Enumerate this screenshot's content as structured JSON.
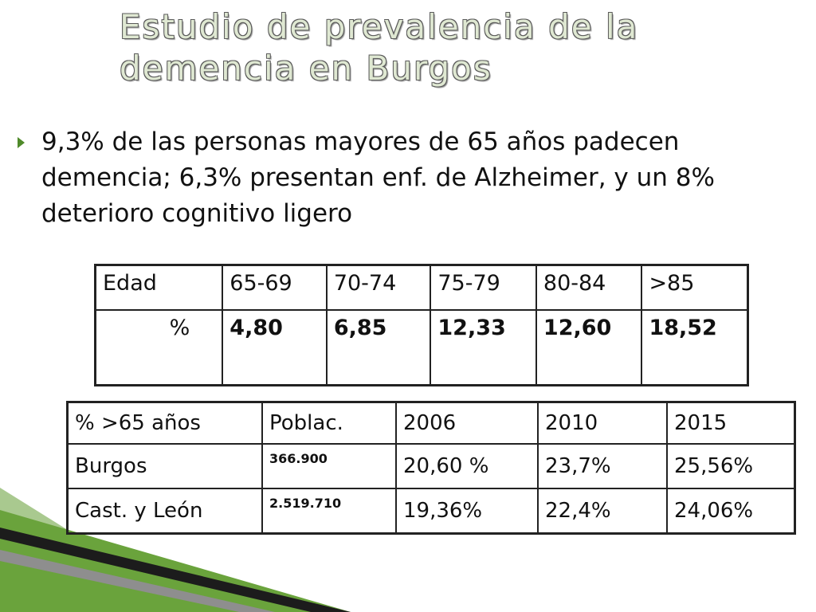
{
  "title": "Estudio de prevalencia de la demencia en Burgos",
  "bullet": "9,3% de las personas mayores de 65 años padecen demencia; 6,3% presentan enf. de Alzheimer, y un 8% deterioro cognitivo ligero",
  "age_table": {
    "header": [
      "Edad",
      "65-69",
      "70-74",
      "75-79",
      "80-84",
      ">85"
    ],
    "row": [
      "%",
      "4,80",
      "6,85",
      "12,33",
      "12,60",
      "18,52"
    ]
  },
  "pop_table": {
    "header": [
      "% >65 años",
      "Poblac.",
      "2006",
      "2010",
      "2015"
    ],
    "rows": [
      [
        "Burgos",
        "366.900",
        "20,60 %",
        "23,7%",
        "25,56%"
      ],
      [
        "Cast. y León",
        "2.519.710",
        "19,36%",
        "22,4%",
        "24,06%"
      ]
    ]
  },
  "colors": {
    "accent_green": "#4f8a2a",
    "title_fill": "#dfe8d2"
  }
}
